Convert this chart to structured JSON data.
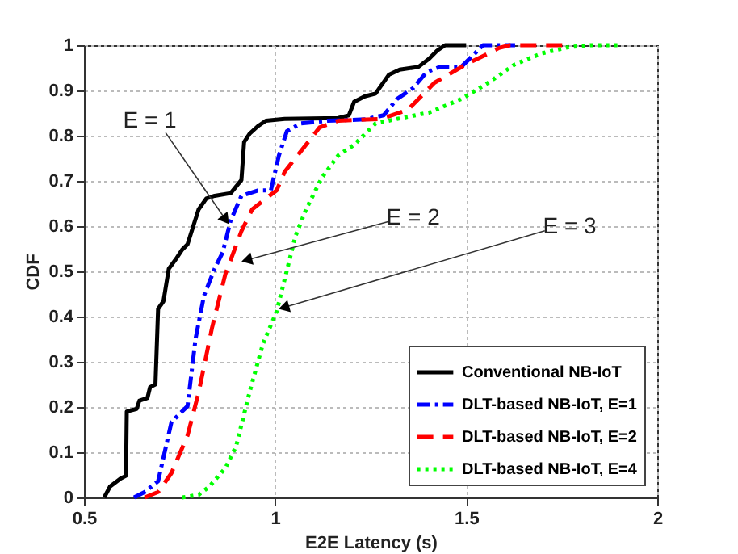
{
  "chart_data": {
    "type": "line",
    "xlabel": "E2E Latency (s)",
    "ylabel": "CDF",
    "xlim": [
      0.5,
      2
    ],
    "xticks": [
      0.5,
      1,
      1.5,
      2
    ],
    "ylim": [
      0,
      1
    ],
    "yticks": [
      0,
      0.1,
      0.2,
      0.3,
      0.4,
      0.5,
      0.6,
      0.7,
      0.8,
      0.9,
      1
    ],
    "grid": true,
    "legend": "bottom right",
    "marker": "none",
    "annotations": [
      {
        "text": "E = 1",
        "x": 0.871,
        "y": 0.614
      },
      {
        "text": "E = 2",
        "x": 0.926,
        "y": 0.525
      },
      {
        "text": "E = 3",
        "x": 1.023,
        "y": 0.42
      }
    ],
    "series": [
      {
        "name": "Conventional NB-IoT",
        "color": "#000000",
        "line_style": "solid",
        "x": [
          0.553,
          0.568,
          0.596,
          0.61,
          0.612,
          0.638,
          0.645,
          0.666,
          0.673,
          0.687,
          0.694,
          0.708,
          0.722,
          0.743,
          0.757,
          0.771,
          0.786,
          0.8,
          0.82,
          0.842,
          0.884,
          0.912,
          0.919,
          0.933,
          0.955,
          0.976,
          1.025,
          1.165,
          1.193,
          1.207,
          1.235,
          1.263,
          1.298,
          1.326,
          1.375,
          1.403,
          1.424,
          1.445,
          1.5
        ],
        "values": [
          0,
          0.024,
          0.042,
          0.048,
          0.19,
          0.196,
          0.214,
          0.22,
          0.244,
          0.25,
          0.417,
          0.434,
          0.506,
          0.53,
          0.548,
          0.56,
          0.6,
          0.637,
          0.661,
          0.667,
          0.673,
          0.702,
          0.786,
          0.804,
          0.821,
          0.833,
          0.837,
          0.839,
          0.845,
          0.875,
          0.887,
          0.893,
          0.935,
          0.946,
          0.952,
          0.97,
          0.988,
          1,
          1
        ]
      },
      {
        "name": "DLT-based NB-IoT, E=1",
        "color": "#0000ff",
        "line_style": "dashdot",
        "x": [
          0.631,
          0.659,
          0.694,
          0.729,
          0.771,
          0.792,
          0.814,
          0.842,
          0.863,
          0.884,
          0.912,
          0.955,
          0.989,
          1.01,
          1.031,
          1.067,
          1.137,
          1.235,
          1.284,
          1.319,
          1.361,
          1.396,
          1.431,
          1.487,
          1.516,
          1.544,
          1.628
        ],
        "values": [
          0,
          0.012,
          0.036,
          0.167,
          0.202,
          0.351,
          0.446,
          0.506,
          0.542,
          0.613,
          0.667,
          0.679,
          0.679,
          0.756,
          0.81,
          0.827,
          0.833,
          0.836,
          0.845,
          0.881,
          0.905,
          0.94,
          0.952,
          0.952,
          0.976,
          1,
          1
        ]
      },
      {
        "name": "DLT-based NB-IoT, E=2",
        "color": "#ff0000",
        "line_style": "dashed",
        "x": [
          0.659,
          0.694,
          0.729,
          0.771,
          0.8,
          0.835,
          0.87,
          0.912,
          0.94,
          0.976,
          1.004,
          1.025,
          1.081,
          1.116,
          1.165,
          1.277,
          1.347,
          1.417,
          1.5,
          1.544,
          1.586,
          1.614,
          1.755
        ],
        "values": [
          0,
          0.012,
          0.054,
          0.137,
          0.232,
          0.375,
          0.494,
          0.589,
          0.637,
          0.661,
          0.679,
          0.72,
          0.78,
          0.818,
          0.833,
          0.837,
          0.857,
          0.917,
          0.958,
          0.976,
          0.994,
          1,
          1
        ]
      },
      {
        "name": "DLT-based NB-IoT, E=4",
        "color": "#00ff00",
        "line_style": "dotted",
        "x": [
          0.757,
          0.8,
          0.828,
          0.87,
          0.898,
          0.933,
          0.968,
          1.004,
          1.025,
          1.053,
          1.081,
          1.123,
          1.165,
          1.207,
          1.263,
          1.319,
          1.403,
          1.487,
          1.558,
          1.628,
          1.698,
          1.769,
          1.825,
          1.902
        ],
        "values": [
          0,
          0.006,
          0.024,
          0.065,
          0.113,
          0.232,
          0.339,
          0.411,
          0.482,
          0.577,
          0.637,
          0.708,
          0.756,
          0.78,
          0.827,
          0.837,
          0.851,
          0.881,
          0.917,
          0.958,
          0.982,
          0.996,
          1,
          1
        ]
      }
    ]
  }
}
